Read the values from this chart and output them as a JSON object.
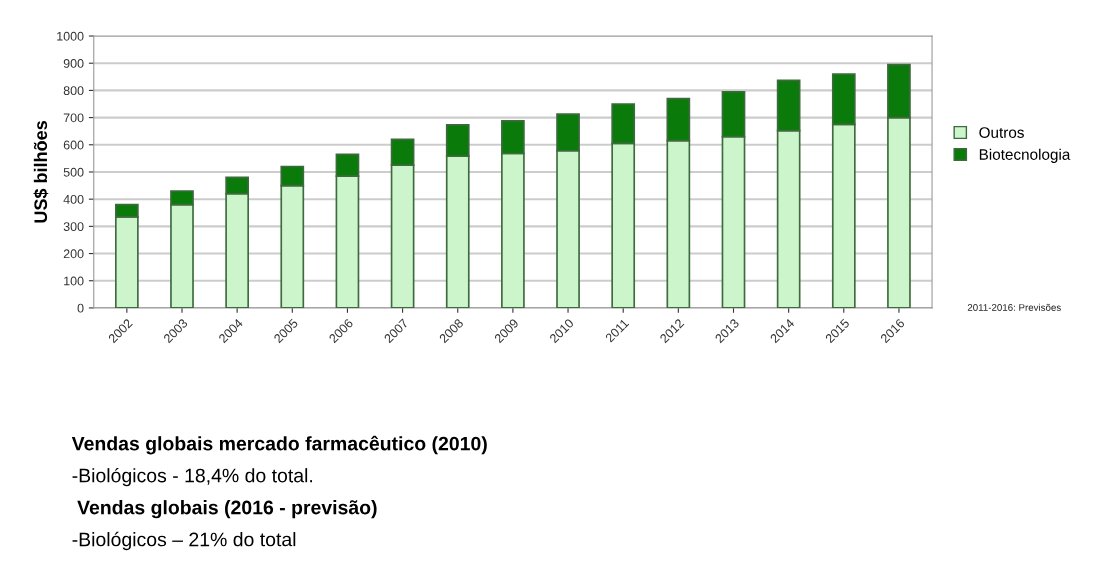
{
  "chart_data": {
    "type": "bar",
    "stacked": true,
    "ylabel": "US$ bilhões",
    "categories": [
      "2002",
      "2003",
      "2004",
      "2005",
      "2006",
      "2007",
      "2008",
      "2009",
      "2010",
      "2011",
      "2012",
      "2013",
      "2014",
      "2015",
      "2016"
    ],
    "series": [
      {
        "name": "Outros",
        "color": "#ccf5cc",
        "values": [
          335,
          380,
          420,
          450,
          485,
          525,
          558,
          568,
          578,
          605,
          615,
          630,
          652,
          675,
          700
        ]
      },
      {
        "name": "Biotecnologia",
        "color": "#0a7a0a",
        "values": [
          45,
          50,
          60,
          70,
          80,
          95,
          115,
          120,
          135,
          145,
          155,
          165,
          185,
          185,
          195
        ]
      }
    ],
    "ylim": [
      0,
      1000
    ],
    "yticks": [
      0,
      100,
      200,
      300,
      400,
      500,
      600,
      700,
      800,
      900,
      1000
    ],
    "grid": "y",
    "legend": "right",
    "annotations": [
      "2011-2016: Previsões",
      "Vendas globais mercado farmacêutico (2010)",
      "-Biológicos - 18,4% do total.",
      " Vendas globais (2016 - previsão)",
      "-Biológicos – 21% do total"
    ]
  }
}
